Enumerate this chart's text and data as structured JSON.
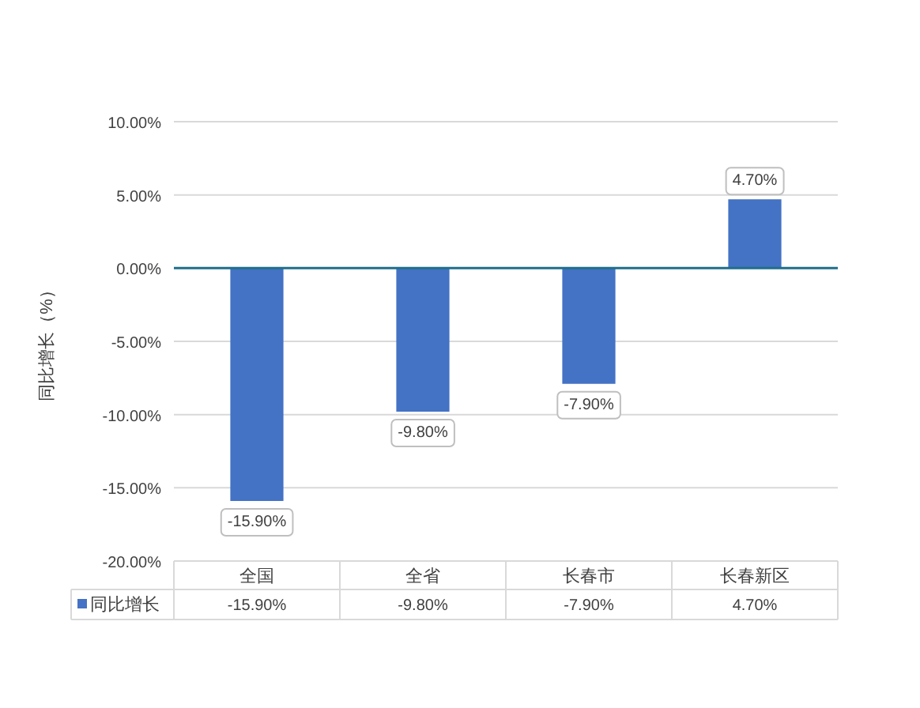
{
  "chart_data": {
    "type": "bar",
    "ylabel": "同比增长（%）",
    "categories": [
      "全国",
      "全省",
      "长春市",
      "长春新区"
    ],
    "series": [
      {
        "name": "同比增长",
        "color": "#4472c4",
        "values": [
          -15.9,
          -9.8,
          -7.9,
          4.7
        ],
        "value_labels": [
          "-15.90%",
          "-9.80%",
          "-7.90%",
          "4.70%"
        ]
      }
    ],
    "ylim": [
      -20,
      10
    ],
    "yticks": [
      {
        "value": -20,
        "label": "-20.00%"
      },
      {
        "value": -15,
        "label": "-15.00%"
      },
      {
        "value": -10,
        "label": "-10.00%"
      },
      {
        "value": -5,
        "label": "-5.00%"
      },
      {
        "value": 0,
        "label": "0.00%"
      },
      {
        "value": 5,
        "label": "5.00%"
      },
      {
        "value": 10,
        "label": "10.00%"
      }
    ],
    "ref_lines": [
      {
        "axis": "y",
        "value": 0,
        "color": "#1f6f8b"
      }
    ],
    "grid": "y",
    "legend": "bottom"
  }
}
